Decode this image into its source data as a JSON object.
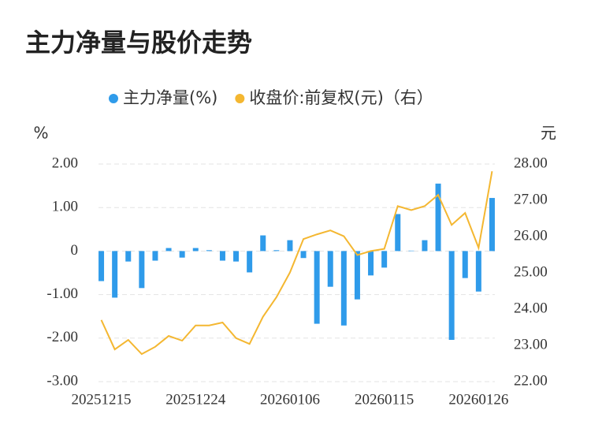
{
  "chart_data": {
    "type": "bar-line",
    "title": "主力净量与股价走势",
    "y_label": "%",
    "y2_label": "元",
    "legend": "top",
    "grid": true,
    "categories": [
      "20251215",
      null,
      null,
      null,
      null,
      null,
      null,
      "20251224",
      null,
      null,
      null,
      null,
      null,
      null,
      "20260106",
      null,
      null,
      null,
      null,
      null,
      null,
      "20260115",
      null,
      null,
      null,
      null,
      null,
      null,
      "20260126",
      null
    ],
    "series": [
      {
        "name": "主力净量(%)",
        "type": "bar",
        "color": "#2f9bea",
        "values": [
          -0.69,
          -1.07,
          -0.24,
          -0.85,
          -0.22,
          0.07,
          -0.15,
          0.07,
          0.02,
          -0.22,
          -0.24,
          -0.49,
          0.36,
          0.02,
          0.25,
          -0.16,
          -1.67,
          -0.82,
          -1.71,
          -1.11,
          -0.56,
          -0.38,
          0.85,
          0.01,
          0.25,
          1.55,
          -2.04,
          -0.62,
          -0.93,
          1.22
        ]
      },
      {
        "name": "收盘价:前复权(元)（右）",
        "type": "line",
        "axis": "y2",
        "color": "#f4b731",
        "values": [
          23.7,
          22.89,
          23.15,
          22.76,
          22.96,
          23.26,
          23.13,
          23.55,
          23.55,
          23.63,
          23.2,
          23.04,
          23.79,
          24.33,
          25.01,
          25.93,
          26.06,
          26.17,
          26.01,
          25.49,
          25.6,
          25.66,
          26.84,
          26.73,
          26.84,
          27.15,
          26.32,
          26.65,
          25.69,
          27.8
        ]
      }
    ],
    "ylim": [
      -3,
      2
    ],
    "yticks": [
      {
        "value": -3,
        "label": "-3.00"
      },
      {
        "value": -2,
        "label": "-2.00"
      },
      {
        "value": -1,
        "label": "-1.00"
      },
      0,
      {
        "value": 1,
        "label": "1.00"
      },
      {
        "value": 2,
        "label": "2.00"
      }
    ],
    "y2lim": [
      22,
      28
    ],
    "y2ticks": [
      {
        "value": 22,
        "label": "22.00"
      },
      {
        "value": 23,
        "label": "23.00"
      },
      {
        "value": 24,
        "label": "24.00"
      },
      {
        "value": 25,
        "label": "25.00"
      },
      {
        "value": 26,
        "label": "26.00"
      },
      {
        "value": 27,
        "label": "27.00"
      },
      {
        "value": 28,
        "label": "28.00"
      }
    ]
  }
}
